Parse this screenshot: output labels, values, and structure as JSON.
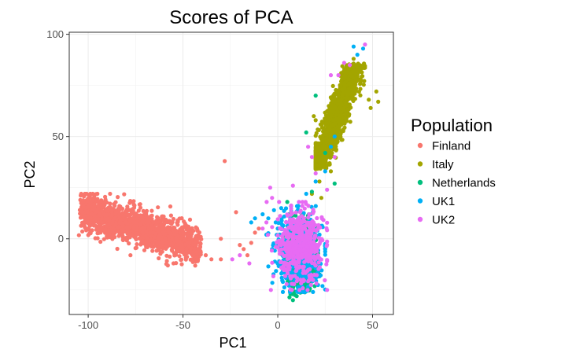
{
  "chart_data": {
    "type": "scatter",
    "title": "Scores of PCA",
    "xlabel": "PC1",
    "ylabel": "PC2",
    "xlim": [
      -110,
      61
    ],
    "ylim": [
      -37,
      101
    ],
    "xticks": [
      -100,
      -50,
      0,
      50
    ],
    "yticks": [
      0,
      50,
      100
    ],
    "grid": true,
    "legend": {
      "title": "Population",
      "placement": "right"
    },
    "series": [
      {
        "name": "Finland",
        "color": "#F8766D",
        "cluster": {
          "n": 1500,
          "center": [
            -75,
            6
          ],
          "extent_x": [
            -105,
            -40
          ],
          "extent_y": [
            -15,
            22
          ],
          "slope": -0.28,
          "spread_y": 4.5
        },
        "points": [
          [
            -28,
            38
          ],
          [
            -38,
            -8
          ],
          [
            -35,
            -10
          ],
          [
            -30,
            -10
          ],
          [
            -45,
            -8
          ],
          [
            -48,
            -6
          ],
          [
            -30,
            0
          ],
          [
            -22,
            13
          ],
          [
            -20,
            -3
          ],
          [
            -18,
            -5
          ],
          [
            -14,
            -2
          ],
          [
            -12,
            3
          ],
          [
            -10,
            5
          ],
          [
            -16,
            -8
          ],
          [
            -55,
            -12
          ],
          [
            -58,
            -13
          ]
        ]
      },
      {
        "name": "Italy",
        "color": "#A3A500",
        "cluster": {
          "n": 1200,
          "center": [
            31,
            60
          ],
          "extent_x": [
            20,
            46
          ],
          "extent_y": [
            34,
            86
          ],
          "slope": 2.5,
          "spread_x": 3.0
        },
        "points": [
          [
            52,
            72
          ],
          [
            53,
            67
          ],
          [
            48,
            68
          ],
          [
            49,
            64
          ],
          [
            19,
            60
          ],
          [
            20,
            58
          ],
          [
            24,
            36
          ],
          [
            22,
            28
          ],
          [
            18,
            22
          ],
          [
            23,
            20
          ],
          [
            42,
            84
          ],
          [
            40,
            88
          ],
          [
            28,
            33
          ]
        ]
      },
      {
        "name": "Netherlands",
        "color": "#00BF7D",
        "cluster": {
          "n": 1300,
          "center": [
            12,
            -8
          ],
          "extent_x": [
            3,
            22
          ],
          "extent_y": [
            -30,
            12
          ],
          "slope": 0,
          "spread_x": 3.5,
          "spread_y": 7
        },
        "points": [
          [
            8,
            -30
          ],
          [
            10,
            -28
          ],
          [
            20,
            70
          ],
          [
            15,
            52
          ],
          [
            18,
            23
          ],
          [
            30,
            27
          ],
          [
            5,
            18
          ],
          [
            6,
            12
          ],
          [
            25,
            42
          ]
        ]
      },
      {
        "name": "UK1",
        "color": "#00B0F6",
        "cluster": {
          "n": 500,
          "center": [
            11,
            -6
          ],
          "extent_x": [
            -5,
            25
          ],
          "extent_y": [
            -26,
            16
          ],
          "slope": 0,
          "spread_x": 6,
          "spread_y": 9
        },
        "points": [
          [
            40,
            94
          ],
          [
            45,
            93
          ],
          [
            42,
            90
          ],
          [
            -12,
            10
          ],
          [
            -14,
            8
          ],
          [
            -8,
            12
          ],
          [
            -5,
            10
          ],
          [
            -2,
            14
          ],
          [
            0,
            5
          ],
          [
            -3,
            -5
          ],
          [
            -6,
            2
          ],
          [
            28,
            45
          ],
          [
            30,
            50
          ],
          [
            25,
            33
          ],
          [
            20,
            28
          ],
          [
            15,
            22
          ]
        ]
      },
      {
        "name": "UK2",
        "color": "#E76BF3",
        "cluster": {
          "n": 500,
          "center": [
            12,
            -4
          ],
          "extent_x": [
            -6,
            26
          ],
          "extent_y": [
            -25,
            18
          ],
          "slope": 0,
          "spread_x": 6,
          "spread_y": 9
        },
        "points": [
          [
            46,
            95
          ],
          [
            38,
            85
          ],
          [
            32,
            80
          ],
          [
            28,
            80
          ],
          [
            35,
            86
          ],
          [
            -24,
            -10
          ],
          [
            -20,
            -8
          ],
          [
            -15,
            -12
          ],
          [
            -8,
            5
          ],
          [
            -6,
            8
          ],
          [
            -3,
            20
          ],
          [
            -4,
            25
          ],
          [
            20,
            32
          ],
          [
            18,
            40
          ],
          [
            16,
            45
          ],
          [
            30,
            40
          ],
          [
            26,
            24
          ],
          [
            8,
            26
          ]
        ]
      }
    ]
  }
}
